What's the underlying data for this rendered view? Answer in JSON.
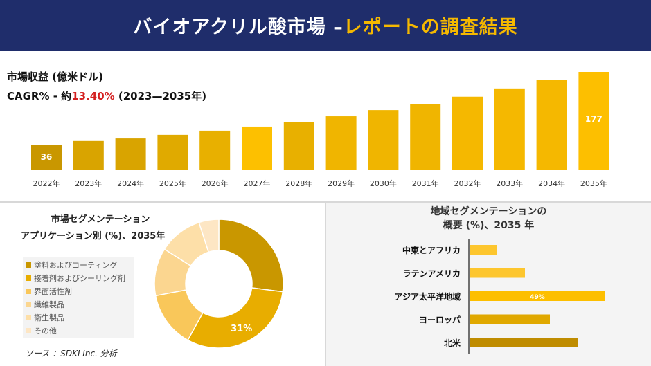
{
  "header": {
    "title_main": "バイオアクリル酸市場 –",
    "title_accent": "レポートの調査結果"
  },
  "market": {
    "label": "市場収益 (億米ドル)",
    "cagr_prefix": "CAGR% - 約",
    "cagr_value": "13.40%",
    "cagr_suffix": " (2023—2035年)"
  },
  "colors": {
    "header": "#1f2d6b",
    "accent": "#f5b800",
    "cagr": "#d42020"
  },
  "chart_data": [
    {
      "type": "bar",
      "categories": [
        "2022年",
        "2023年",
        "2024年",
        "2025年",
        "2026年",
        "2027年",
        "2028年",
        "2029年",
        "2030年",
        "2031年",
        "2032年",
        "2033年",
        "2034年",
        "2035年"
      ],
      "values": [
        36,
        43,
        48,
        55,
        63,
        71,
        80,
        91,
        103,
        115,
        129,
        145,
        162,
        177
      ],
      "data_labels": {
        "0": "36",
        "13": "177"
      },
      "ylabel": "",
      "xlabel": ""
    },
    {
      "type": "pie",
      "title_line1": "市場セグメンテーション",
      "title_line2": "アプリケーション別 (%)、2035年",
      "categories": [
        "塗料およびコーティング",
        "接着剤およびシーリング剤",
        "界面活性剤",
        "繊維製品",
        "衛生製品",
        "その他"
      ],
      "values": [
        27,
        31,
        14,
        12,
        11,
        5
      ],
      "colors": [
        "#c99700",
        "#e8ad00",
        "#f9c75a",
        "#fbd690",
        "#fddfa8",
        "#fde6c4"
      ],
      "data_labels": {
        "1": "31%"
      },
      "legend": "left"
    },
    {
      "type": "bar",
      "orientation": "horizontal",
      "title_line1": "地域セグメンテーションの",
      "title_line2": "概要 (%)、2035 年",
      "categories": [
        "中東とアフリカ",
        "ラテンアメリカ",
        "アジア太平洋地域",
        "ヨーロッパ",
        "北米"
      ],
      "values": [
        10,
        20,
        49,
        29,
        39
      ],
      "colors": [
        "#fdc62e",
        "#fdc62e",
        "#fdbf00",
        "#e0a800",
        "#bf8c00"
      ],
      "data_labels": {
        "2": "49%"
      }
    }
  ],
  "source": "ソース ：SDKI Inc. 分析"
}
